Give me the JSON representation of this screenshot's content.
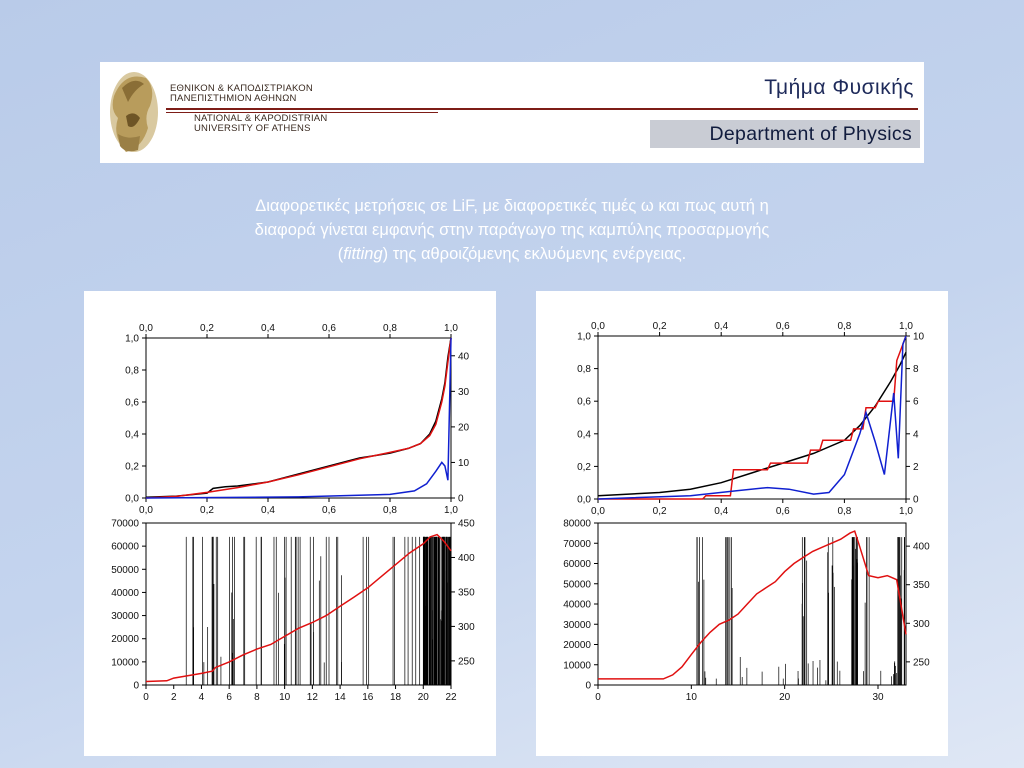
{
  "banner": {
    "university_gr": [
      "ΕΘΝΙΚΟΝ & ΚΑΠΟΔΙΣΤΡΙΑΚΟΝ",
      "ΠΑΝΕΠΙΣΤΗΜΙΟΝ ΑΘΗΝΩΝ"
    ],
    "university_en": [
      "NATIONAL & KAPODISTRIAN",
      "UNIVERSITY OF ATHENS"
    ],
    "department_gr": "Τμήμα Φυσικής",
    "department_en": "Department of Physics"
  },
  "caption": {
    "line1": "Διαφορετικές μετρήσεις σε LiF, με διαφορετικές τιμές ω και πως αυτή η",
    "line2": "διαφορά γίνεται εμφανής στην παράγωγο της καμπύλης προσαρμογής",
    "line3_open": "(",
    "line3_italic": "fitting",
    "line3_rest": ") της αθροιζόμενης εκλυόμενης ενέργειας."
  },
  "colors": {
    "black_series": "#000000",
    "red_series": "#e01010",
    "blue_series": "#1020d0"
  },
  "chart_data": [
    {
      "type": "line",
      "panel": "left-top",
      "x_ticks": [
        "0,0",
        "0,2",
        "0,4",
        "0,6",
        "0,8",
        "1,0"
      ],
      "y_left_ticks": [
        "0,0",
        "0,2",
        "0,4",
        "0,6",
        "0,8",
        "1,0"
      ],
      "y_right_ticks": [
        "0",
        "10",
        "20",
        "30",
        "40"
      ],
      "xlim": [
        0,
        1
      ],
      "ylim": [
        0,
        1
      ],
      "y2lim": [
        0,
        45
      ],
      "series": [
        {
          "color": "black",
          "x": [
            0,
            0.1,
            0.2,
            0.22,
            0.26,
            0.3,
            0.4,
            0.5,
            0.6,
            0.7,
            0.8,
            0.86,
            0.9,
            0.93,
            0.95,
            0.97,
            0.98,
            0.99,
            1.0
          ],
          "y": [
            0.005,
            0.012,
            0.03,
            0.06,
            0.07,
            0.075,
            0.1,
            0.15,
            0.2,
            0.25,
            0.28,
            0.31,
            0.34,
            0.4,
            0.48,
            0.62,
            0.72,
            0.88,
            1.0
          ]
        },
        {
          "color": "red",
          "x": [
            0,
            0.1,
            0.2,
            0.3,
            0.4,
            0.5,
            0.6,
            0.7,
            0.8,
            0.86,
            0.9,
            0.93,
            0.95,
            0.97,
            0.98,
            0.99,
            1.0
          ],
          "y": [
            0.0,
            0.01,
            0.035,
            0.065,
            0.1,
            0.145,
            0.195,
            0.245,
            0.285,
            0.31,
            0.34,
            0.39,
            0.46,
            0.6,
            0.7,
            0.85,
            1.0
          ]
        },
        {
          "color": "blue",
          "axis": "right",
          "x": [
            0,
            0.5,
            0.8,
            0.88,
            0.92,
            0.95,
            0.97,
            0.98,
            0.99,
            1.0
          ],
          "y": [
            0,
            0.3,
            1,
            2,
            4,
            7.5,
            10,
            9,
            5,
            45
          ]
        }
      ]
    },
    {
      "type": "line",
      "panel": "left-bottom",
      "x_ticks": [
        "0",
        "2",
        "4",
        "6",
        "8",
        "10",
        "12",
        "14",
        "16",
        "18",
        "20",
        "22"
      ],
      "y_left_ticks": [
        "0",
        "10000",
        "20000",
        "30000",
        "40000",
        "50000",
        "60000",
        "70000"
      ],
      "y_right_ticks": [
        "250",
        "300",
        "350",
        "400",
        "450"
      ],
      "xlim": [
        0,
        22
      ],
      "ylim": [
        0,
        70000
      ],
      "y2lim": [
        215,
        450
      ],
      "series": [
        {
          "color": "red",
          "x": [
            0,
            1.5,
            2,
            3,
            4,
            4.8,
            5,
            6,
            7,
            8,
            9,
            10,
            11,
            12,
            13,
            14,
            15,
            16,
            17,
            18,
            19,
            20,
            20.5,
            21,
            21.5,
            22
          ],
          "y": [
            1500,
            1800,
            3000,
            4000,
            5000,
            6000,
            7500,
            10000,
            13000,
            15500,
            17500,
            21000,
            24500,
            27000,
            30000,
            34000,
            38000,
            42000,
            47000,
            52000,
            57000,
            61000,
            64000,
            65000,
            62000,
            58000
          ]
        }
      ],
      "spikes": "dense vertical black spikes reaching ~65000 from x≈2 to x≈22"
    },
    {
      "type": "line",
      "panel": "right-top",
      "x_ticks": [
        "0,0",
        "0,2",
        "0,4",
        "0,6",
        "0,8",
        "1,0"
      ],
      "y_left_ticks": [
        "0,0",
        "0,2",
        "0,4",
        "0,6",
        "0,8",
        "1,0"
      ],
      "y_right_ticks": [
        "0",
        "2",
        "4",
        "6",
        "8",
        "10"
      ],
      "xlim": [
        0,
        1
      ],
      "ylim": [
        0,
        1
      ],
      "y2lim": [
        0,
        10
      ],
      "series": [
        {
          "color": "black",
          "x": [
            0,
            0.2,
            0.3,
            0.4,
            0.5,
            0.6,
            0.7,
            0.8,
            0.85,
            0.9,
            0.95,
            0.98,
            1.0
          ],
          "y": [
            0.02,
            0.04,
            0.06,
            0.1,
            0.16,
            0.22,
            0.28,
            0.36,
            0.45,
            0.57,
            0.72,
            0.82,
            0.9
          ]
        },
        {
          "color": "red",
          "x": [
            0,
            0.34,
            0.35,
            0.43,
            0.44,
            0.55,
            0.56,
            0.68,
            0.69,
            0.72,
            0.73,
            0.82,
            0.83,
            0.86,
            0.87,
            0.9,
            0.91,
            0.96,
            0.97,
            1.0
          ],
          "y": [
            0,
            0,
            0.02,
            0.02,
            0.18,
            0.18,
            0.22,
            0.22,
            0.3,
            0.3,
            0.36,
            0.36,
            0.43,
            0.43,
            0.56,
            0.56,
            0.6,
            0.6,
            0.85,
            1.0
          ]
        },
        {
          "color": "blue",
          "axis": "right",
          "x": [
            0,
            0.3,
            0.45,
            0.55,
            0.62,
            0.7,
            0.75,
            0.8,
            0.85,
            0.87,
            0.9,
            0.93,
            0.96,
            0.975,
            0.99,
            1.0
          ],
          "y": [
            0,
            0.2,
            0.5,
            0.7,
            0.6,
            0.3,
            0.4,
            1.5,
            4,
            5.3,
            3.5,
            1.5,
            6.5,
            2.5,
            9.5,
            10
          ]
        }
      ]
    },
    {
      "type": "line",
      "panel": "right-bottom",
      "x_ticks": [
        "0",
        "10",
        "20",
        "30"
      ],
      "y_left_ticks": [
        "0",
        "10000",
        "20000",
        "30000",
        "40000",
        "50000",
        "60000",
        "70000",
        "80000"
      ],
      "y_right_ticks": [
        "250",
        "300",
        "350",
        "400"
      ],
      "xlim": [
        0,
        33
      ],
      "ylim": [
        0,
        80000
      ],
      "y2lim": [
        220,
        430
      ],
      "series": [
        {
          "color": "red",
          "x": [
            0,
            5,
            7,
            8,
            9,
            10,
            11,
            12,
            13,
            14,
            15,
            16,
            17,
            18,
            19,
            20,
            21,
            22,
            23,
            24,
            25,
            26,
            27,
            27.5,
            28,
            29,
            30,
            31,
            32,
            33
          ],
          "y": [
            3000,
            3000,
            3000,
            5000,
            9000,
            15000,
            21000,
            26000,
            30000,
            32000,
            35000,
            40000,
            45000,
            48000,
            51000,
            56000,
            60000,
            63000,
            66000,
            68000,
            70000,
            72000,
            75000,
            76000,
            69000,
            54000,
            53000,
            54000,
            52000,
            25000
          ]
        }
      ],
      "spikes": "sparse vertical black spikes at x≈11,14,22,25,27.5,29,32.5"
    }
  ]
}
